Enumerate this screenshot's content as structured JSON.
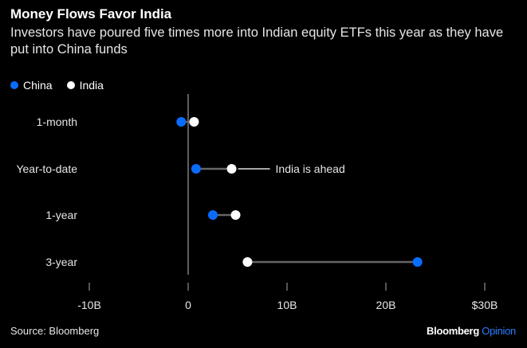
{
  "header": {
    "title": "Money Flows Favor India",
    "subtitle": "Investors have poured five times more into Indian equity ETFs this year as they have put into China funds"
  },
  "footer": {
    "source": "Source: Bloomberg",
    "brand": "Bloomberg",
    "brand_suffix": "Opinion"
  },
  "colors": {
    "china": "#0a6cff",
    "india": "#ffffff",
    "connector": "#666666",
    "background": "#000000"
  },
  "chart_data": {
    "type": "dot-plot",
    "title": "Money Flows Favor India",
    "categories": [
      "1-month",
      "Year-to-date",
      "1-year",
      "3-year"
    ],
    "series": [
      {
        "name": "China",
        "values": [
          -0.7,
          0.8,
          2.5,
          23.2
        ]
      },
      {
        "name": "India",
        "values": [
          0.6,
          4.4,
          4.8,
          6.0
        ]
      }
    ],
    "xlim": [
      -10,
      30
    ],
    "xticks": [
      -10,
      0,
      10,
      20,
      30
    ],
    "xtick_labels": [
      "-10B",
      "0",
      "10B",
      "20B",
      "$30B"
    ],
    "annotation": {
      "text": "India is ahead",
      "category": "Year-to-date"
    },
    "legend": "top-left"
  }
}
